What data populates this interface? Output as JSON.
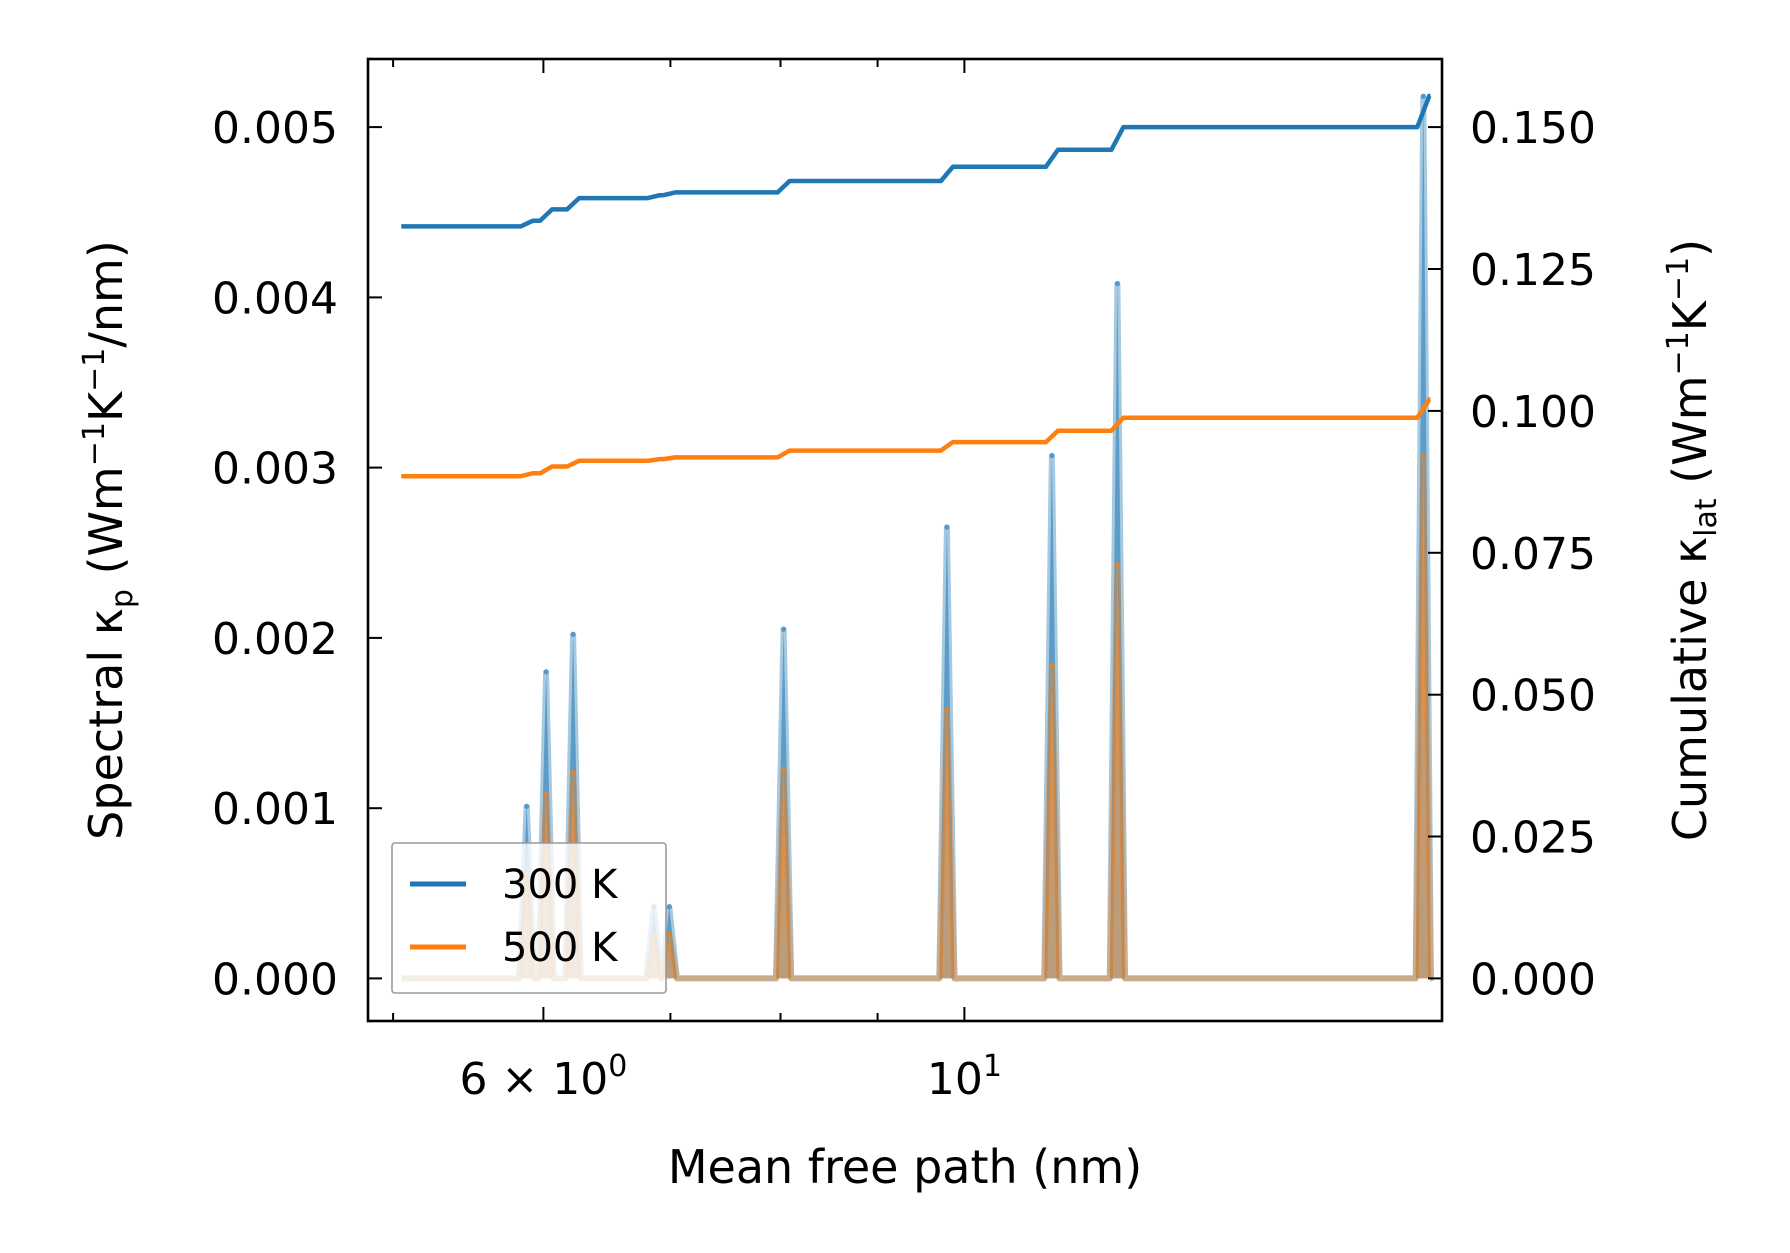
{
  "chart_data": {
    "type": "line",
    "xscale": "log",
    "xlim": [
      4.85,
      17.85
    ],
    "ylim_left": [
      -0.00025,
      0.0054
    ],
    "ylim_right": [
      -0.0075,
      0.162
    ],
    "xlabel": "Mean free path (nm)",
    "ylabel_left": {
      "prefix": "Spectral κ",
      "sub": "p",
      "mid1": " (Wm",
      "sup1": "−1",
      "mid2": "K",
      "sup2": "−1",
      "suffix": "/nm)"
    },
    "ylabel_right": {
      "prefix": "Cumulative κ",
      "sub": "lat",
      "mid1": " (Wm",
      "sup1": "−1",
      "mid2": "K",
      "sup2": "−1",
      "suffix": ")"
    },
    "x_ticks": [
      {
        "value": 6,
        "base": "6 × 10",
        "exp": "0"
      },
      {
        "value": 10,
        "base": "10",
        "exp": "1"
      }
    ],
    "y_left_ticks": [
      "0.000",
      "0.001",
      "0.002",
      "0.003",
      "0.004",
      "0.005"
    ],
    "y_left_tick_values": [
      0,
      0.001,
      0.002,
      0.003,
      0.004,
      0.005
    ],
    "y_right_ticks": [
      "0.000",
      "0.025",
      "0.050",
      "0.075",
      "0.100",
      "0.125",
      "0.150"
    ],
    "y_right_tick_values": [
      0,
      0.025,
      0.05,
      0.075,
      0.1,
      0.125,
      0.15
    ],
    "x_range": [
      5.05,
      17.6
    ],
    "peak_half_width": 0.004,
    "legend": {
      "position": "lower-left",
      "entries": [
        "300 K",
        "500 K"
      ]
    },
    "colors": {
      "300 K": "#1f77b4",
      "500 K": "#ff7f0e"
    },
    "series": [
      {
        "name": "300 K",
        "spectral_peaks": [
          {
            "x": 5.88,
            "y": 0.00101
          },
          {
            "x": 6.02,
            "y": 0.0018
          },
          {
            "x": 6.22,
            "y": 0.00202
          },
          {
            "x": 6.86,
            "y": 0.00042
          },
          {
            "x": 6.99,
            "y": 0.00042
          },
          {
            "x": 8.03,
            "y": 0.00205
          },
          {
            "x": 9.79,
            "y": 0.00265
          },
          {
            "x": 11.12,
            "y": 0.00307
          },
          {
            "x": 12.04,
            "y": 0.00408
          },
          {
            "x": 17.45,
            "y": 0.00518
          }
        ],
        "cumulative_start": 0.1325,
        "cumulative_steps": [
          {
            "x": 5.88,
            "y": 0.1335
          },
          {
            "x": 6.02,
            "y": 0.1355
          },
          {
            "x": 6.22,
            "y": 0.1375
          },
          {
            "x": 6.86,
            "y": 0.138
          },
          {
            "x": 6.99,
            "y": 0.1385
          },
          {
            "x": 8.03,
            "y": 0.1405
          },
          {
            "x": 9.79,
            "y": 0.143
          },
          {
            "x": 11.12,
            "y": 0.146
          },
          {
            "x": 12.04,
            "y": 0.15
          },
          {
            "x": 17.45,
            "y": 0.1555
          }
        ]
      },
      {
        "name": "500 K",
        "spectral_peaks": [
          {
            "x": 5.88,
            "y": 0.00061
          },
          {
            "x": 6.02,
            "y": 0.00108
          },
          {
            "x": 6.22,
            "y": 0.00121
          },
          {
            "x": 6.86,
            "y": 0.00026
          },
          {
            "x": 6.99,
            "y": 0.00026
          },
          {
            "x": 8.03,
            "y": 0.00123
          },
          {
            "x": 9.79,
            "y": 0.00158
          },
          {
            "x": 11.12,
            "y": 0.00184
          },
          {
            "x": 12.04,
            "y": 0.00243
          },
          {
            "x": 17.45,
            "y": 0.00307
          }
        ],
        "cumulative_start": 0.0885,
        "cumulative_steps": [
          {
            "x": 5.88,
            "y": 0.089
          },
          {
            "x": 6.02,
            "y": 0.0902
          },
          {
            "x": 6.22,
            "y": 0.0912
          },
          {
            "x": 6.86,
            "y": 0.0915
          },
          {
            "x": 6.99,
            "y": 0.0918
          },
          {
            "x": 8.03,
            "y": 0.093
          },
          {
            "x": 9.79,
            "y": 0.0945
          },
          {
            "x": 11.12,
            "y": 0.0965
          },
          {
            "x": 12.04,
            "y": 0.0988
          },
          {
            "x": 17.45,
            "y": 0.102
          }
        ]
      }
    ]
  }
}
